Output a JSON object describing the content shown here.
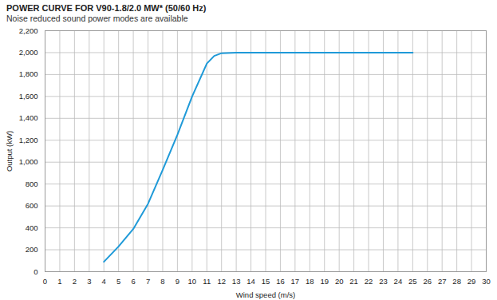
{
  "chart_data": {
    "type": "line",
    "title": "POWER CURVE FOR V90-1.8/2.0 MW* (50/60 Hz)",
    "subtitle": "Noise reduced sound power modes are available",
    "x_label": "Wind speed (m/s)",
    "y_label": "Output (kW)",
    "x": [
      4,
      5,
      6,
      7,
      8,
      9,
      10,
      11,
      11.5,
      12,
      13,
      25
    ],
    "values": [
      90,
      230,
      390,
      620,
      930,
      1250,
      1600,
      1900,
      1970,
      1995,
      2000,
      2000
    ],
    "color": "#1f9ad8",
    "xlim": [
      0,
      30
    ],
    "ylim": [
      0,
      2200
    ],
    "xticks": [
      0,
      1,
      2,
      3,
      4,
      5,
      6,
      7,
      8,
      9,
      10,
      11,
      12,
      13,
      14,
      15,
      16,
      17,
      18,
      19,
      20,
      21,
      22,
      23,
      24,
      25,
      26,
      27,
      28,
      29,
      30
    ],
    "yticks": [
      0,
      200,
      400,
      600,
      800,
      {
        "value": 1000,
        "label": "1,000"
      },
      {
        "value": 1200,
        "label": "1,200"
      },
      {
        "value": 1400,
        "label": "1,400"
      },
      {
        "value": 1600,
        "label": "1,600"
      },
      {
        "value": 1800,
        "label": "1,800"
      },
      {
        "value": 2000,
        "label": "2,000"
      },
      {
        "value": 2200,
        "label": "2,200"
      }
    ],
    "grid": true
  }
}
